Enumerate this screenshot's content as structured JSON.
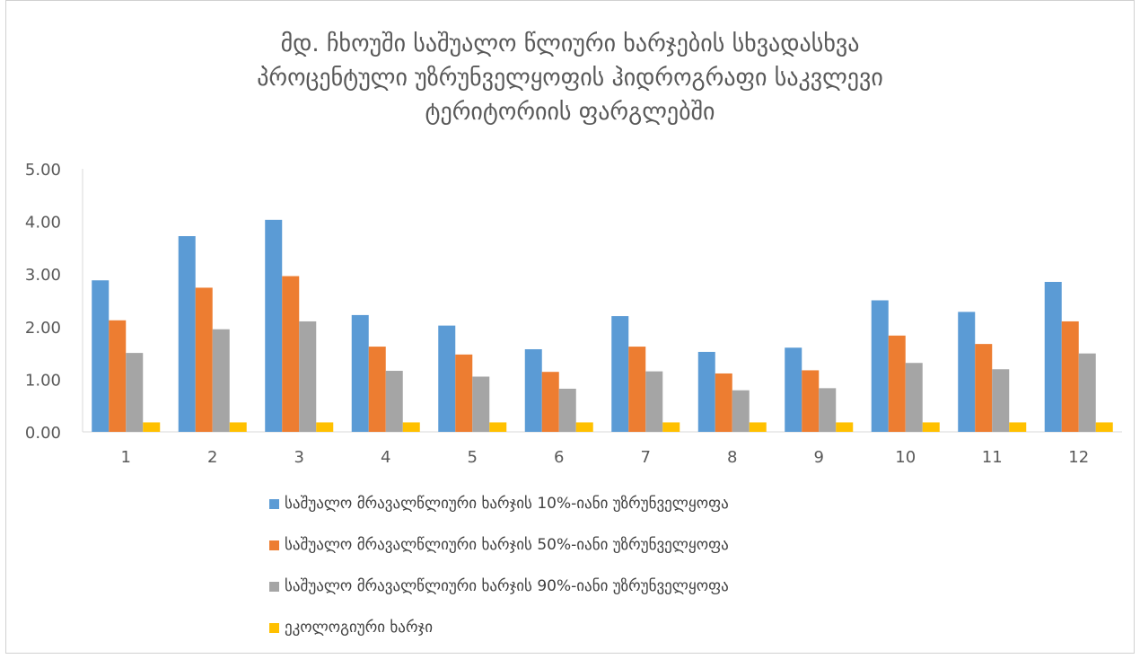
{
  "chart_data": {
    "type": "bar",
    "title_lines": [
      "მდ. ჩხოუში საშუალო წლიური ხარჯების სხვადასხვა",
      "პროცენტული უზრუნველყოფის ჰიდროგრაფი საკვლევი",
      "ტერიტორიის ფარგლებში"
    ],
    "categories": [
      "1",
      "2",
      "3",
      "4",
      "5",
      "6",
      "7",
      "8",
      "9",
      "10",
      "11",
      "12"
    ],
    "y_ticks": [
      "0.00",
      "1.00",
      "2.00",
      "3.00",
      "4.00",
      "5.00"
    ],
    "ylim": [
      0,
      5
    ],
    "grid": false,
    "legend_position": "bottom",
    "series": [
      {
        "name": "საშუალო მრავალწლიური ხარჯის 10%-იანი უზრუნველყოფა",
        "color": "#5B9BD5",
        "values": [
          2.88,
          3.72,
          4.03,
          2.22,
          2.02,
          1.57,
          2.2,
          1.52,
          1.6,
          2.5,
          2.28,
          2.85
        ]
      },
      {
        "name": "საშუალო მრავალწლიური ხარჯის 50%-იანი უზრუნველყოფა",
        "color": "#ED7D31",
        "values": [
          2.12,
          2.74,
          2.96,
          1.62,
          1.47,
          1.14,
          1.62,
          1.11,
          1.17,
          1.83,
          1.67,
          2.1
        ]
      },
      {
        "name": "საშუალო მრავალწლიური ხარჯის 90%-იანი უზრუნველყოფა",
        "color": "#A5A5A5",
        "values": [
          1.5,
          1.95,
          2.1,
          1.16,
          1.05,
          0.82,
          1.15,
          0.79,
          0.83,
          1.31,
          1.19,
          1.49
        ]
      },
      {
        "name": "ეკოლოგიური ხარჯი",
        "color": "#FFC000",
        "values": [
          0.18,
          0.18,
          0.18,
          0.18,
          0.18,
          0.18,
          0.18,
          0.18,
          0.18,
          0.18,
          0.18,
          0.18
        ]
      }
    ]
  }
}
